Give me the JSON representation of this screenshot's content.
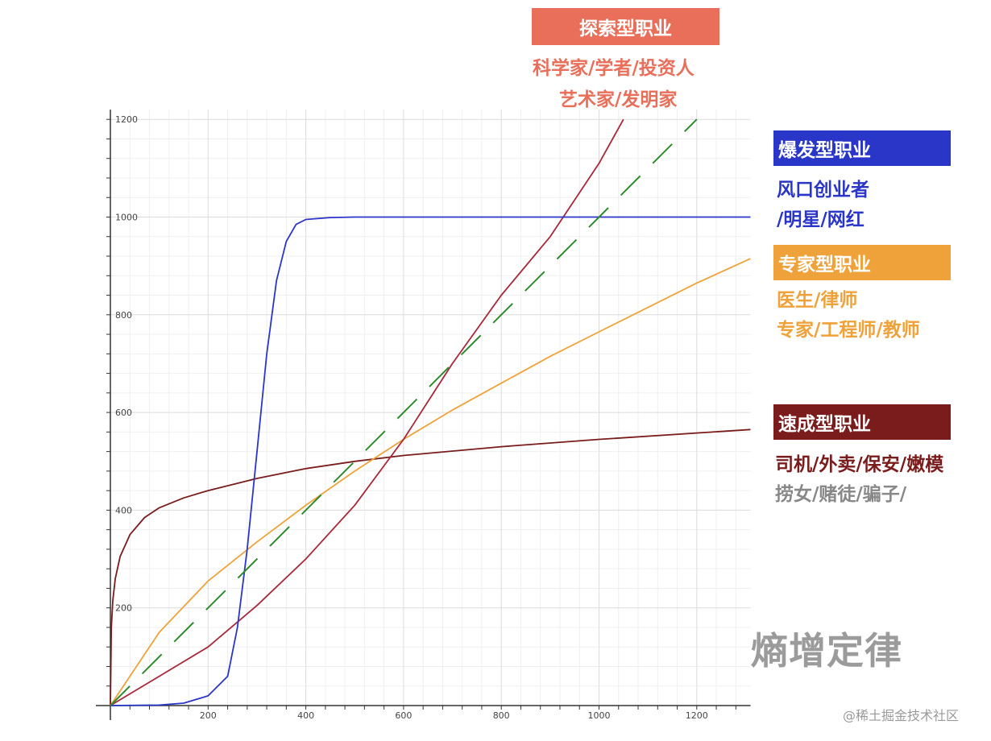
{
  "colors": {
    "explorer": "#ea6f5a",
    "burst": "#2a36c8",
    "expert": "#f0a23a",
    "quick": "#7b1c1c",
    "reference": "#2e8b2e",
    "grey_text": "#888888"
  },
  "labels": {
    "explorer": {
      "title": "探索型职业",
      "line1": "科学家/学者/投资人",
      "line2": "艺术家/发明家"
    },
    "burst": {
      "title": "爆发型职业",
      "line1": "风口创业者",
      "line2": "/明星/网红"
    },
    "expert": {
      "title": "专家型职业",
      "line1": "医生/律师",
      "line2": "专家/工程师/教师"
    },
    "quick": {
      "title": "速成型职业",
      "line1": "司机/外卖/保安/嫩模",
      "line2": "捞女/赌徒/骗子/"
    }
  },
  "watermark": "熵增定律",
  "credit": "@稀土掘金技术社区",
  "chart_data": {
    "type": "line",
    "xlim": [
      0,
      1310
    ],
    "ylim": [
      0,
      1220
    ],
    "x_ticks": [
      200,
      400,
      600,
      800,
      1000,
      1200
    ],
    "y_ticks": [
      200,
      400,
      600,
      800,
      1000,
      1200
    ],
    "grid": true,
    "series": [
      {
        "key": "quick",
        "color": "#7b1c1c",
        "dashed": false,
        "x": [
          0,
          2,
          5,
          10,
          20,
          40,
          70,
          100,
          150,
          200,
          300,
          400,
          500,
          600,
          800,
          1000,
          1200,
          1310
        ],
        "y": [
          0,
          160,
          215,
          260,
          305,
          350,
          385,
          405,
          425,
          440,
          465,
          485,
          500,
          512,
          530,
          545,
          558,
          565
        ]
      },
      {
        "key": "expert",
        "color": "#f0a23a",
        "dashed": false,
        "x": [
          0,
          100,
          200,
          300,
          400,
          500,
          600,
          700,
          800,
          900,
          1000,
          1100,
          1200,
          1310
        ],
        "y": [
          0,
          150,
          255,
          335,
          410,
          480,
          545,
          605,
          660,
          715,
          765,
          815,
          865,
          915
        ]
      },
      {
        "key": "explorer",
        "color": "#a8283a",
        "dashed": false,
        "x": [
          0,
          100,
          200,
          300,
          400,
          500,
          600,
          700,
          800,
          900,
          1000,
          1050
        ],
        "y": [
          0,
          60,
          120,
          205,
          300,
          410,
          545,
          700,
          840,
          960,
          1110,
          1200
        ]
      },
      {
        "key": "burst",
        "color": "#2a36c8",
        "dashed": false,
        "x": [
          0,
          100,
          150,
          200,
          240,
          260,
          280,
          300,
          320,
          340,
          360,
          380,
          400,
          450,
          500,
          600,
          800,
          1000,
          1200,
          1310
        ],
        "y": [
          0,
          1,
          5,
          20,
          60,
          160,
          320,
          520,
          720,
          870,
          950,
          985,
          995,
          999,
          1000,
          1000,
          1000,
          1000,
          1000,
          1000
        ]
      },
      {
        "key": "reference",
        "color": "#2e8b2e",
        "dashed": true,
        "x": [
          0,
          1200
        ],
        "y": [
          0,
          1200
        ]
      }
    ]
  }
}
